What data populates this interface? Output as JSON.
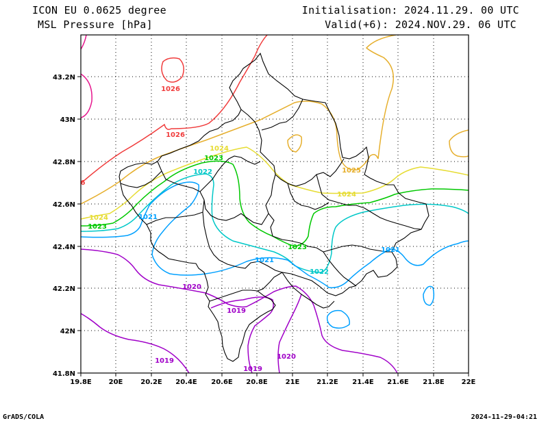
{
  "header": {
    "model": "ICON EU 0.0625 degree",
    "field": "MSL Pressure [hPa]",
    "init": "Initialisation: 2024.11.29. 00 UTC",
    "valid": "Valid(+6): 2024.NOV.29. 06 UTC"
  },
  "footer": {
    "credit": "GrADS/COLA",
    "timestamp": "2024-11-29-04:21"
  },
  "map": {
    "lat_ticks": [
      "41.8N",
      "42N",
      "42.2N",
      "42.4N",
      "42.6N",
      "42.8N",
      "43N",
      "43.2N"
    ],
    "lon_ticks": [
      "19.8E",
      "20E",
      "20.2E",
      "20.4E",
      "20.6E",
      "20.8E",
      "21E",
      "21.2E",
      "21.4E",
      "21.6E",
      "21.8E",
      "22E"
    ],
    "grid": true,
    "isobar_colors": {
      "1019": "#a000c8",
      "1020": "#a000c8",
      "1021": "#00a0ff",
      "1022": "#00c8c8",
      "1023": "#00c800",
      "1024": "#e6dc32",
      "1025": "#e6af2d",
      "1026": "#f03c3c",
      "1027": "#e6148c"
    },
    "isobar_labels": [
      "1026",
      "1026",
      "1024",
      "1025",
      "1023",
      "1022",
      "1024",
      "1023",
      "1021",
      "1023",
      "1021",
      "1022",
      "1021",
      "1020",
      "1019",
      "1020",
      "1019",
      "1019",
      "1024",
      "1023",
      "6"
    ]
  }
}
